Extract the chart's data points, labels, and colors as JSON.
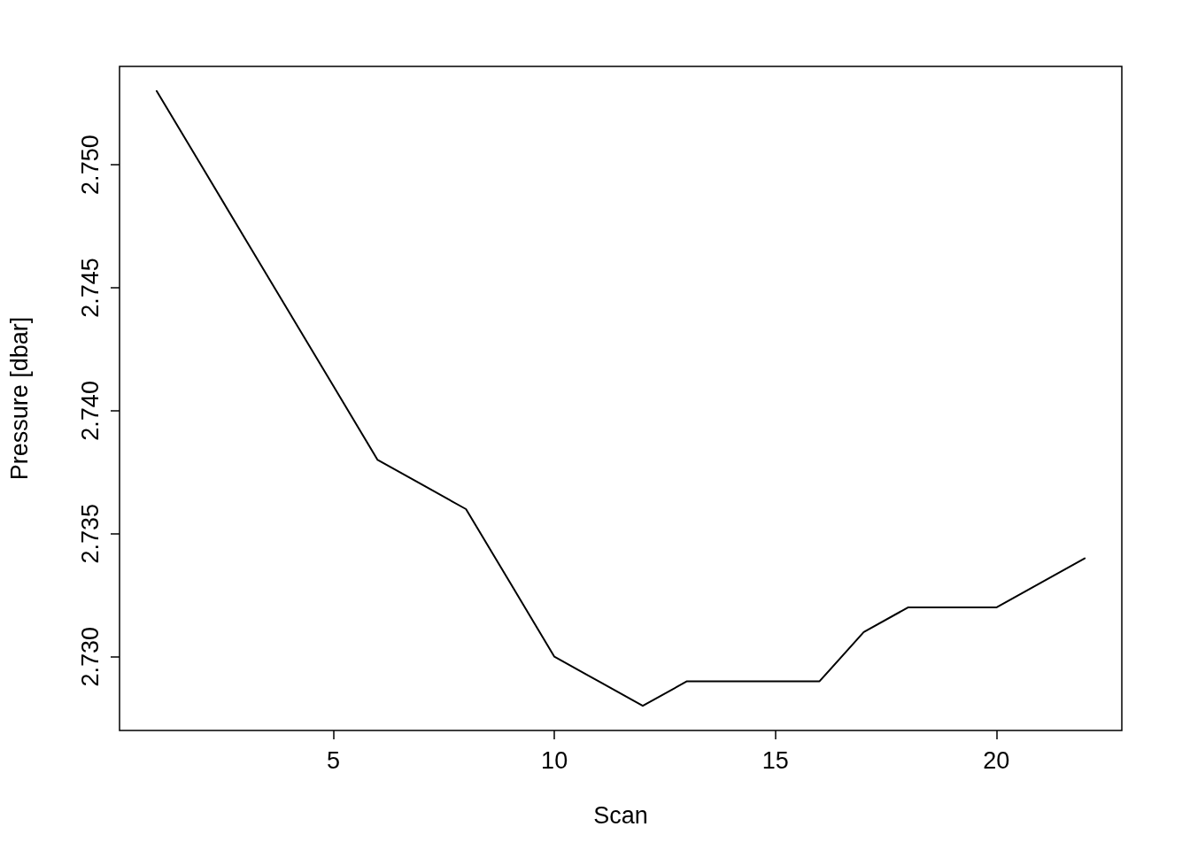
{
  "chart_data": {
    "type": "line",
    "xlabel": "Scan",
    "ylabel": "Pressure [dbar]",
    "x": [
      1,
      2,
      3,
      4,
      5,
      6,
      7,
      8,
      9,
      10,
      11,
      12,
      13,
      14,
      15,
      16,
      17,
      18,
      19,
      20,
      21,
      22
    ],
    "series": [
      {
        "color": "#000000",
        "values": [
          2.753,
          2.75,
          2.747,
          2.744,
          2.741,
          2.738,
          2.737,
          2.736,
          2.733,
          2.73,
          2.729,
          2.728,
          2.729,
          2.729,
          2.729,
          2.729,
          2.731,
          2.732,
          2.732,
          2.732,
          2.733,
          2.734
        ]
      }
    ],
    "xlim": [
      0.16,
      22.84
    ],
    "ylim": [
      2.727,
      2.754
    ],
    "xticks": [
      5,
      10,
      15,
      20
    ],
    "yticks": [
      {
        "value": 2.73,
        "label": "2.730"
      },
      {
        "value": 2.735,
        "label": "2.735"
      },
      {
        "value": 2.74,
        "label": "2.740"
      },
      {
        "value": 2.745,
        "label": "2.745"
      },
      {
        "value": 2.75,
        "label": "2.750"
      }
    ],
    "marker": "none",
    "line_style": "solid"
  }
}
